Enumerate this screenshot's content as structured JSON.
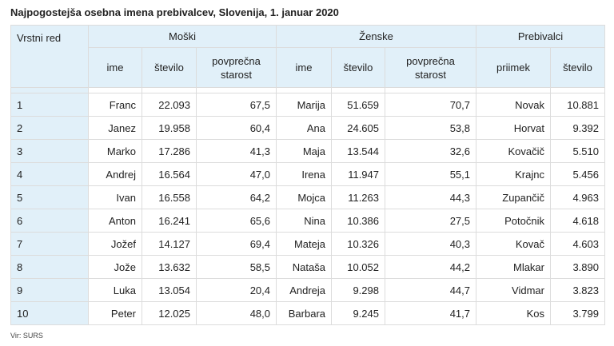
{
  "title": "Najpogostejša osebna imena prebivalcev, Slovenija, 1. januar 2020",
  "headers": {
    "rank": "Vrstni red",
    "groups": [
      "Moški",
      "Ženske",
      "Prebivalci"
    ],
    "sub": [
      "ime",
      "število",
      "povprečna starost",
      "ime",
      "število",
      "povprečna starost",
      "priimek",
      "število"
    ]
  },
  "rows": [
    [
      "1",
      "Franc",
      "22.093",
      "67,5",
      "Marija",
      "51.659",
      "70,7",
      "Novak",
      "10.881"
    ],
    [
      "2",
      "Janez",
      "19.958",
      "60,4",
      "Ana",
      "24.605",
      "53,8",
      "Horvat",
      "9.392"
    ],
    [
      "3",
      "Marko",
      "17.286",
      "41,3",
      "Maja",
      "13.544",
      "32,6",
      "Kovačič",
      "5.510"
    ],
    [
      "4",
      "Andrej",
      "16.564",
      "47,0",
      "Irena",
      "11.947",
      "55,1",
      "Krajnc",
      "5.456"
    ],
    [
      "5",
      "Ivan",
      "16.558",
      "64,2",
      "Mojca",
      "11.263",
      "44,3",
      "Zupančič",
      "4.963"
    ],
    [
      "6",
      "Anton",
      "16.241",
      "65,6",
      "Nina",
      "10.386",
      "27,5",
      "Potočnik",
      "4.618"
    ],
    [
      "7",
      "Jožef",
      "14.127",
      "69,4",
      "Mateja",
      "10.326",
      "40,3",
      "Kovač",
      "4.603"
    ],
    [
      "8",
      "Jože",
      "13.632",
      "58,5",
      "Nataša",
      "10.052",
      "44,2",
      "Mlakar",
      "3.890"
    ],
    [
      "9",
      "Luka",
      "13.054",
      "20,4",
      "Andreja",
      "9.298",
      "44,7",
      "Vidmar",
      "3.823"
    ],
    [
      "10",
      "Peter",
      "12.025",
      "48,0",
      "Barbara",
      "9.245",
      "41,7",
      "Kos",
      "3.799"
    ]
  ],
  "source": "Vir: SURS"
}
